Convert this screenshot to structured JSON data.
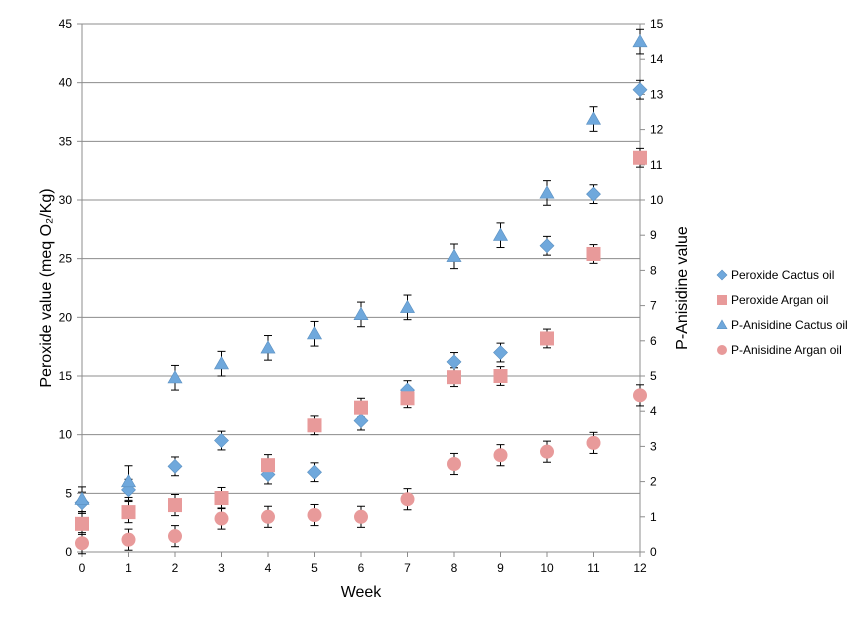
{
  "chart_data": {
    "type": "scatter",
    "xlabel": "Week",
    "ylabel": "Peroxide value (meq O₂/Kg)",
    "y2label": "P-Anisidine value",
    "x": [
      0,
      1,
      2,
      3,
      4,
      5,
      6,
      7,
      8,
      9,
      10,
      11,
      12
    ],
    "xlim": [
      0,
      12
    ],
    "ylim": [
      0,
      45
    ],
    "y2lim": [
      0,
      15
    ],
    "yticks": [
      "0",
      "5",
      "10",
      "15",
      "20",
      "25",
      "30",
      "35",
      "40",
      "45"
    ],
    "y2ticks": [
      "0",
      "1",
      "2",
      "3",
      "4",
      "5",
      "6",
      "7",
      "8",
      "9",
      "10",
      "11",
      "12",
      "13",
      "14",
      "15"
    ],
    "xticks": [
      "0",
      "1",
      "2",
      "3",
      "4",
      "5",
      "6",
      "7",
      "8",
      "9",
      "10",
      "11",
      "12"
    ],
    "grid": "horizontal",
    "legend_position": "right",
    "series": [
      {
        "name": "Peroxide Cactus oil",
        "axis": "left",
        "marker": "diamond",
        "color": "#6FA8DC",
        "values": [
          4.2,
          5.3,
          7.3,
          9.5,
          6.6,
          6.8,
          11.2,
          13.8,
          16.2,
          17.0,
          26.1,
          30.5,
          39.4
        ],
        "errors": [
          0.9,
          0.9,
          0.8,
          0.8,
          0.8,
          0.8,
          0.8,
          0.8,
          0.8,
          0.8,
          0.8,
          0.8,
          0.8
        ]
      },
      {
        "name": "Peroxide Argan oil",
        "axis": "left",
        "marker": "square",
        "color": "#E89A9A",
        "values": [
          2.4,
          3.4,
          4.0,
          4.6,
          7.4,
          10.8,
          12.3,
          13.1,
          14.9,
          15.0,
          18.2,
          25.4,
          33.6
        ],
        "errors": [
          0.9,
          0.9,
          0.9,
          0.9,
          0.9,
          0.8,
          0.8,
          0.8,
          0.8,
          0.8,
          0.8,
          0.8,
          0.8
        ]
      },
      {
        "name": "P-Anisidine Cactus oil",
        "axis": "right",
        "marker": "triangle",
        "color": "#6FA8DC",
        "values": [
          1.5,
          2.0,
          4.95,
          5.35,
          5.8,
          6.2,
          6.75,
          6.95,
          8.4,
          9.0,
          10.2,
          12.3,
          14.5
        ],
        "errors": [
          0.35,
          0.45,
          0.35,
          0.35,
          0.35,
          0.35,
          0.35,
          0.35,
          0.35,
          0.35,
          0.35,
          0.35,
          0.35
        ]
      },
      {
        "name": "P-Anisidine Argan oil",
        "axis": "right",
        "marker": "circle",
        "color": "#E89A9A",
        "values": [
          0.25,
          0.35,
          0.45,
          0.95,
          1.0,
          1.05,
          1.0,
          1.5,
          2.5,
          2.75,
          2.85,
          3.1,
          4.45
        ],
        "errors": [
          0.3,
          0.3,
          0.3,
          0.3,
          0.3,
          0.3,
          0.3,
          0.3,
          0.3,
          0.3,
          0.3,
          0.3,
          0.3
        ]
      }
    ]
  }
}
